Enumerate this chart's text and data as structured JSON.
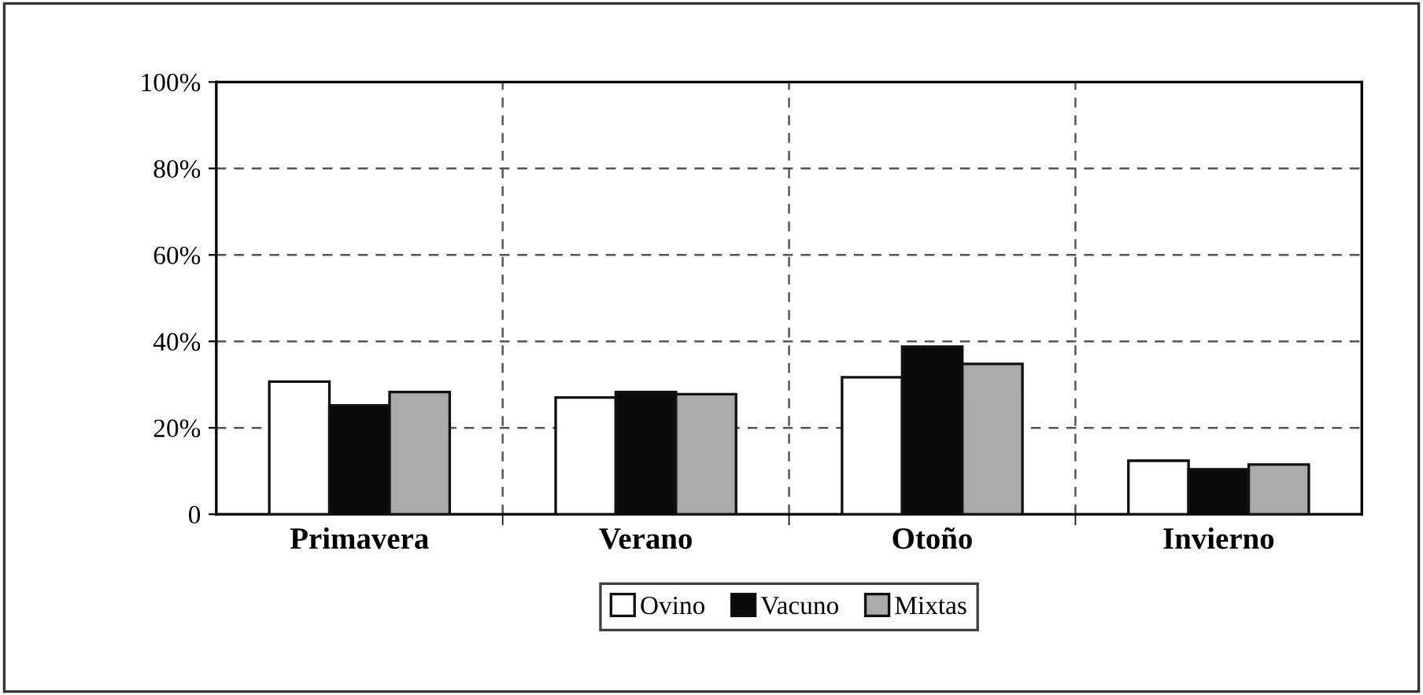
{
  "chart_data": {
    "type": "bar",
    "categories": [
      "Primavera",
      "Verano",
      "Otoño",
      "Invierno"
    ],
    "series": [
      {
        "name": "Ovino",
        "color": "#ffffff",
        "values": [
          30.7,
          27.0,
          31.7,
          12.4
        ]
      },
      {
        "name": "Vacuno",
        "color": "#0a0a0a",
        "values": [
          25.2,
          28.3,
          38.8,
          10.4
        ]
      },
      {
        "name": "Mixtas",
        "color": "#aaaaaa",
        "values": [
          28.3,
          27.8,
          34.8,
          11.5
        ]
      }
    ],
    "ylim": [
      0,
      100
    ],
    "yticks": [
      {
        "value": 0,
        "label": "0"
      },
      {
        "value": 20,
        "label": "20%"
      },
      {
        "value": 40,
        "label": "40%"
      },
      {
        "value": 60,
        "label": "60%"
      },
      {
        "value": 80,
        "label": "80%"
      },
      {
        "value": 100,
        "label": "100%"
      }
    ],
    "grid": true,
    "legend": "bottom"
  }
}
